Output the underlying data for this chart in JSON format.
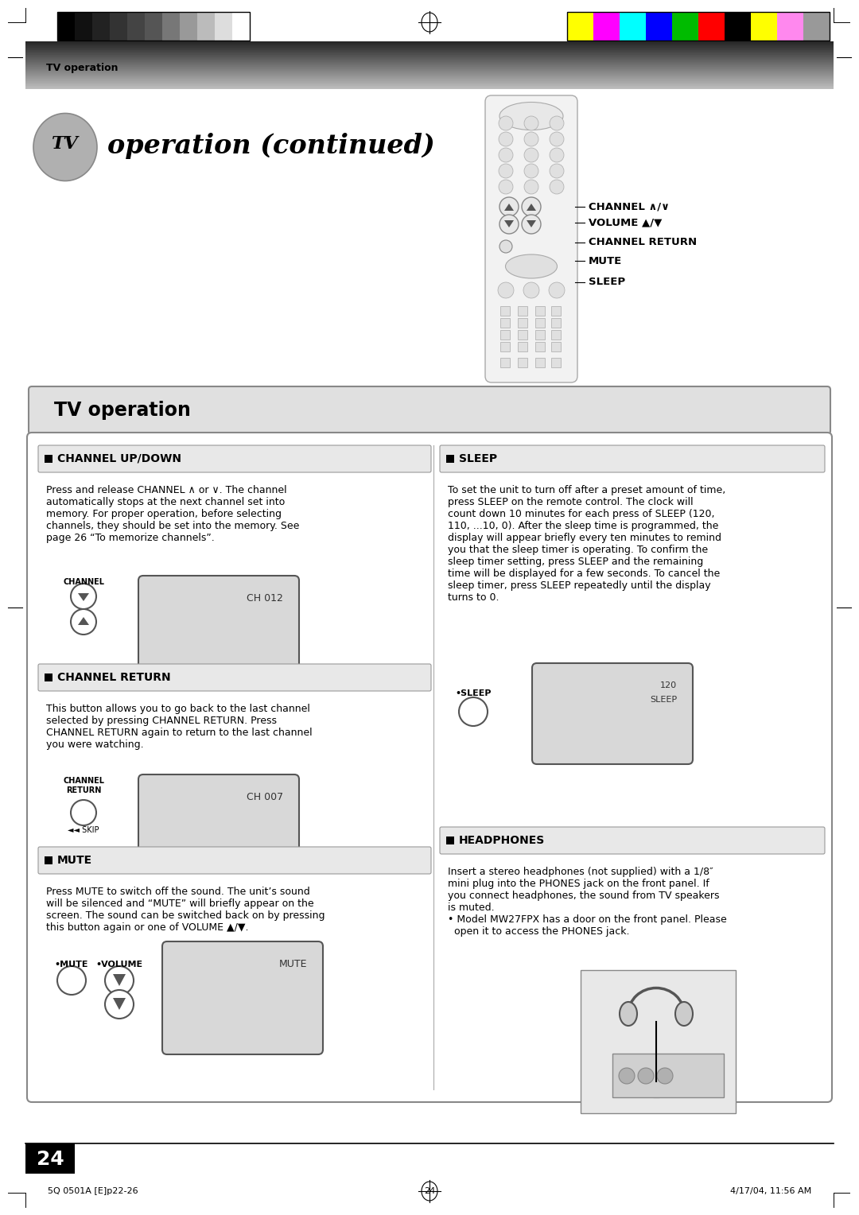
{
  "page_width": 10.8,
  "page_height": 15.28,
  "bg_color": "#ffffff",
  "header_text": "TV operation",
  "title_italic": "TV",
  "title_rest": " operation (continued)",
  "section_title": "TV operation",
  "grayscale_colors": [
    "#000000",
    "#111111",
    "#222222",
    "#333333",
    "#444444",
    "#555555",
    "#777777",
    "#999999",
    "#bbbbbb",
    "#dddddd",
    "#ffffff"
  ],
  "color_bars": [
    "#ffff00",
    "#ff00ff",
    "#00ffff",
    "#0000ff",
    "#00bb00",
    "#ff0000",
    "#000000",
    "#ffff00",
    "#ff88ee",
    "#999999"
  ],
  "channel_label": "CHANNEL ∧/∨",
  "volume_label": "VOLUME ▲/▼",
  "channel_return_label": "CHANNEL RETURN",
  "mute_label": "MUTE",
  "sleep_label": "SLEEP",
  "section1_title": "CHANNEL UP/DOWN",
  "section1_body1": "Press and release ",
  "section1_bold1": "CHANNEL",
  "section1_body1b": " ∧ or ∨. The channel\nautomatically stops at the next channel set into\nmemory. For proper operation, before selecting\nchannels, they should be set into the memory. See\npage 26 “To memorize channels”.",
  "section2_title": "CHANNEL RETURN",
  "section2_body": "This button allows you to go back to the last channel\nselected by pressing CHANNEL RETURN. Press\nCHANNEL RETURN again to return to the last channel\nyou were watching.",
  "section3_title": "MUTE",
  "section3_body": "Press MUTE to switch off the sound. The unit’s sound\nwill be silenced and “MUTE” will briefly appear on the\nscreen. The sound can be switched back on by pressing\nthis button again or one of VOLUME ▲/▼.",
  "section4_title": "SLEEP",
  "section4_body": "To set the unit to turn off after a preset amount of time,\npress SLEEP on the remote control. The clock will\ncount down 10 minutes for each press of SLEEP (120,\n110, ...10, 0). After the sleep time is programmed, the\ndisplay will appear briefly every ten minutes to remind\nyou that the sleep timer is operating. To confirm the\nsleep timer setting, press SLEEP and the remaining\ntime will be displayed for a few seconds. To cancel the\nsleep timer, press SLEEP repeatedly until the display\nturns to 0.",
  "section5_title": "HEADPHONES",
  "section5_body": "Insert a stereo headphones (not supplied) with a 1/8″\nmini plug into the PHONES jack on the front panel. If\nyou connect headphones, the sound from TV speakers\nis muted.\n• Model MW27FPX has a door on the front panel. Please\n  open it to access the PHONES jack.",
  "display_ch012": "CH 012",
  "display_ch007": "CH 007",
  "display_mute": "MUTE",
  "display_sleep_line1": "SLEEP",
  "display_sleep_line2": "120",
  "footer_left": "5Q 0501A [E]p22-26",
  "footer_center": "24",
  "footer_right": "4/17/04, 11:56 AM",
  "page_number": "24"
}
